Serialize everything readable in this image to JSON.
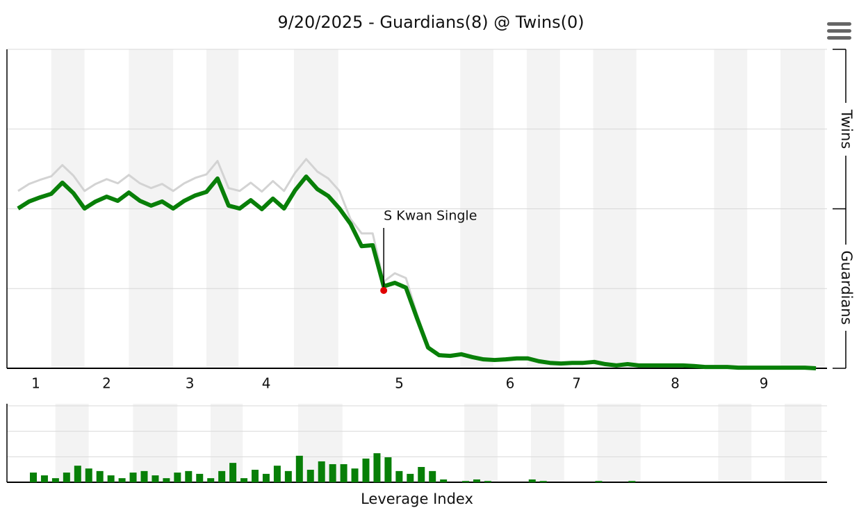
{
  "chart_data": [
    {
      "type": "line",
      "title": "9/20/2025 - Guardians(8) @ Twins(0)",
      "xlim": [
        -1,
        73
      ],
      "ylim": [
        0,
        100
      ],
      "yticks": [
        0,
        25,
        50,
        75,
        100
      ],
      "side_labels": [
        "Twins",
        "Guardians"
      ],
      "innings": {
        "labels": [
          "1",
          "2",
          "3",
          "4",
          "5",
          "6",
          "7",
          "8",
          "9"
        ],
        "x": [
          1.6,
          8,
          15.5,
          22.4,
          34.4,
          44.4,
          50.4,
          59.3,
          67.3
        ]
      },
      "bands": [
        [
          3.0,
          6.0
        ],
        [
          10.0,
          14.0
        ],
        [
          17.0,
          19.9
        ],
        [
          24.9,
          28.9
        ],
        [
          39.9,
          42.9
        ],
        [
          45.9,
          48.9
        ],
        [
          51.9,
          55.8
        ],
        [
          62.8,
          65.8
        ],
        [
          68.8,
          72.8
        ]
      ],
      "series": [
        {
          "color": "#d3d3d3",
          "values": [
            55.6,
            57.8,
            59.1,
            60.2,
            63.7,
            60.4,
            55.6,
            57.8,
            59.3,
            58.0,
            60.6,
            58.0,
            56.5,
            57.8,
            55.6,
            58.0,
            59.7,
            60.8,
            65.0,
            56.5,
            55.6,
            58.2,
            55.4,
            58.7,
            55.6,
            61.3,
            65.6,
            61.7,
            59.5,
            55.6,
            46.8,
            42.3,
            42.3,
            27.2,
            29.8,
            28.3,
            17.0,
            7.0,
            4.1,
            3.9,
            4.4,
            3.5,
            2.8,
            2.6,
            2.8,
            3.1,
            3.1,
            2.2,
            1.7,
            1.5,
            1.7,
            1.7,
            2.0,
            1.3,
            0.9,
            1.3,
            0.9,
            0.9,
            0.9,
            0.9,
            0.9,
            0.7,
            0.4,
            0.4,
            0.4,
            0.2,
            0.2,
            0.2,
            0.2,
            0.2,
            0.2,
            0.2,
            0
          ]
        },
        {
          "color": "#087f08",
          "values": [
            50.1,
            52.3,
            53.6,
            54.7,
            58.2,
            54.9,
            50.1,
            52.3,
            53.8,
            52.5,
            55.1,
            52.5,
            51.0,
            52.3,
            50.1,
            52.5,
            54.2,
            55.3,
            59.5,
            51.0,
            50.1,
            52.7,
            49.9,
            53.2,
            50.1,
            55.8,
            60.1,
            56.2,
            54.0,
            50.1,
            45.3,
            38.3,
            38.6,
            25.7,
            26.8,
            25.3,
            15.7,
            6.5,
            4.1,
            3.9,
            4.4,
            3.5,
            2.8,
            2.6,
            2.8,
            3.1,
            3.1,
            2.2,
            1.7,
            1.5,
            1.7,
            1.7,
            2.0,
            1.3,
            0.9,
            1.3,
            0.9,
            0.9,
            0.9,
            0.9,
            0.9,
            0.7,
            0.4,
            0.4,
            0.4,
            0.2,
            0.2,
            0.2,
            0.2,
            0.2,
            0.2,
            0.2,
            0
          ]
        }
      ],
      "annotation": {
        "text": "S Kwan Single",
        "x": 33,
        "y": 24.4,
        "color": "#e00000"
      }
    },
    {
      "type": "bar",
      "x_label": "Leverage Index",
      "color": "#087f08",
      "ylim": [
        0,
        3
      ],
      "yticks": [
        0,
        1,
        2,
        3
      ],
      "values": [
        0.38,
        0.27,
        0.16,
        0.38,
        0.65,
        0.54,
        0.44,
        0.27,
        0.16,
        0.38,
        0.44,
        0.27,
        0.16,
        0.38,
        0.44,
        0.33,
        0.16,
        0.44,
        0.76,
        0.16,
        0.49,
        0.33,
        0.65,
        0.44,
        1.04,
        0.49,
        0.82,
        0.71,
        0.71,
        0.54,
        0.93,
        1.14,
        0.98,
        0.44,
        0.33,
        0.6,
        0.44,
        0.11,
        0,
        0.05,
        0.11,
        0.05,
        0,
        0,
        0,
        0.11,
        0.05,
        0,
        0,
        0,
        0,
        0.05,
        0,
        0,
        0.05,
        0,
        0,
        0,
        0,
        0,
        0,
        0,
        0,
        0,
        0,
        0,
        0,
        0,
        0,
        0,
        0,
        0
      ]
    }
  ]
}
